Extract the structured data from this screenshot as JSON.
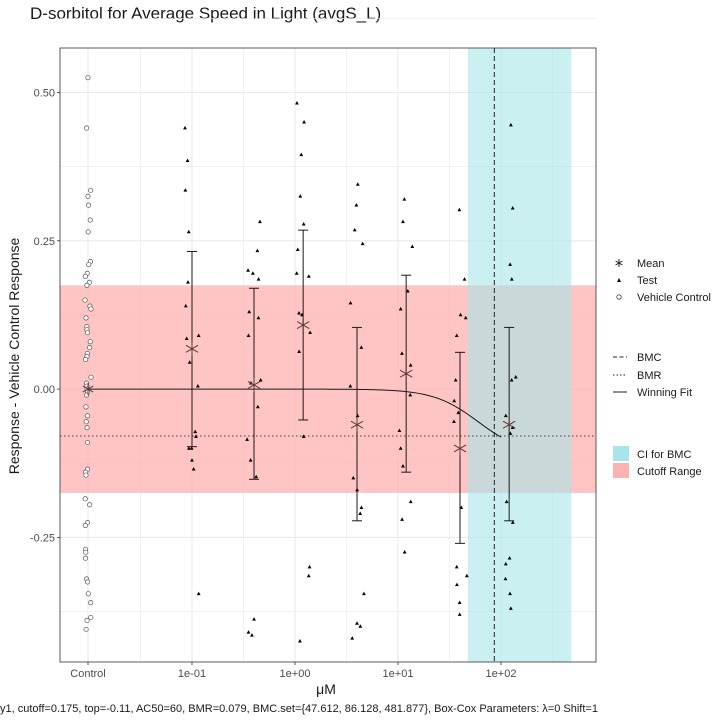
{
  "chart_data": {
    "type": "scatter",
    "title": "D-sorbitol for Average Speed in Light (avgS_L)",
    "xlabel": "μM",
    "ylabel": "Response - Vehicle Control Response",
    "x_scale": "log10",
    "x_tick_labels": [
      "Control",
      "1e-01",
      "1e+00",
      "1e+01",
      "1e+02"
    ],
    "x_tick_values": [
      null,
      0.1,
      1,
      10,
      100
    ],
    "y_ticks": [
      -0.25,
      0.0,
      0.25,
      0.5
    ],
    "y_tick_labels": [
      "-0.25",
      "0.00",
      "0.25",
      "0.50"
    ],
    "ylim": [
      -0.46,
      0.575
    ],
    "grid": true,
    "legend_position": "right",
    "cutoff_range": [
      -0.175,
      0.175
    ],
    "ci_for_bmc": [
      47.612,
      481.877
    ],
    "bmc": 86.128,
    "bmr_line": -0.079,
    "winning_fit": {
      "bottom": 0.0,
      "top": -0.11,
      "ac50": 60,
      "n": 2,
      "x_max": 100
    },
    "concentrations": [
      0.1,
      0.4,
      1.2,
      4.0,
      12,
      40,
      120
    ],
    "means": [
      0.068,
      0.007,
      0.108,
      -0.06,
      0.026,
      -0.1,
      -0.06
    ],
    "error_bars": [
      {
        "lo": -0.097,
        "hi": 0.232
      },
      {
        "lo": -0.152,
        "hi": 0.17
      },
      {
        "lo": -0.052,
        "hi": 0.268
      },
      {
        "lo": -0.222,
        "hi": 0.104
      },
      {
        "lo": -0.14,
        "hi": 0.192
      },
      {
        "lo": -0.26,
        "hi": 0.062
      },
      {
        "lo": -0.222,
        "hi": 0.104
      }
    ],
    "test_points": [
      {
        "x": 0.1,
        "y": [
          0.44,
          0.385,
          0.335,
          0.265,
          0.18,
          0.14,
          0.09,
          0.085,
          0.045,
          0.005,
          -0.072,
          -0.08,
          -0.1,
          -0.1,
          -0.12,
          -0.135,
          -0.345
        ]
      },
      {
        "x": 0.4,
        "y": [
          0.282,
          0.233,
          0.2,
          0.195,
          0.185,
          0.13,
          0.12,
          0.09,
          0.015,
          0.01,
          -0.03,
          -0.085,
          -0.12,
          -0.148,
          -0.388,
          -0.41,
          -0.415
        ]
      },
      {
        "x": 1.2,
        "y": [
          0.482,
          0.45,
          0.395,
          0.325,
          0.278,
          0.235,
          0.195,
          0.19,
          0.128,
          0.125,
          0.095,
          0.063,
          -0.08,
          -0.3,
          -0.315,
          -0.425
        ]
      },
      {
        "x": 4.0,
        "y": [
          0.345,
          0.31,
          0.268,
          0.245,
          0.145,
          0.07,
          0.005,
          -0.045,
          -0.15,
          -0.17,
          -0.2,
          -0.21,
          -0.345,
          -0.395,
          -0.4,
          -0.42
        ]
      },
      {
        "x": 12,
        "y": [
          0.32,
          0.282,
          0.24,
          0.165,
          0.135,
          0.06,
          0.04,
          -0.01,
          -0.07,
          -0.1,
          -0.13,
          -0.19,
          -0.22,
          -0.275
        ]
      },
      {
        "x": 40,
        "y": [
          0.302,
          0.185,
          0.125,
          0.12,
          0.09,
          0.015,
          -0.02,
          -0.04,
          -0.055,
          -0.2,
          -0.3,
          -0.315,
          -0.33,
          -0.36,
          -0.38
        ]
      },
      {
        "x": 120,
        "y": [
          0.445,
          0.305,
          0.21,
          0.185,
          0.02,
          0.015,
          -0.045,
          -0.065,
          -0.075,
          -0.19,
          -0.225,
          -0.285,
          -0.295,
          -0.32,
          -0.345,
          -0.37
        ]
      }
    ],
    "control_points": [
      0.525,
      0.44,
      0.335,
      0.325,
      0.31,
      0.285,
      0.265,
      0.215,
      0.21,
      0.195,
      0.19,
      0.18,
      0.175,
      0.15,
      0.14,
      0.135,
      0.12,
      0.105,
      0.1,
      0.095,
      0.08,
      0.07,
      0.06,
      0.055,
      0.05,
      0.02,
      0.01,
      0.005,
      0.0,
      -0.005,
      -0.01,
      -0.03,
      -0.045,
      -0.055,
      -0.065,
      -0.09,
      -0.135,
      -0.14,
      -0.145,
      -0.185,
      -0.195,
      -0.225,
      -0.23,
      -0.27,
      -0.275,
      -0.285,
      -0.32,
      -0.325,
      -0.345,
      -0.36,
      -0.385,
      -0.39,
      -0.405
    ],
    "legend": {
      "points": [
        "Mean",
        "Test",
        "Vehicle Control"
      ],
      "lines": [
        "BMC",
        "BMR",
        "Winning Fit"
      ],
      "fills": [
        "CI for BMC",
        "Cutoff Range"
      ]
    },
    "colors": {
      "ci_fill": "#a6e6ea",
      "cutoff_fill": "#ffb0b0",
      "panel_border": "#333333",
      "grid": "#ebebeb",
      "mean_marker": "#5a3a3a"
    },
    "footer_text": "y1, cutoff=0.175, top=-0.11, AC50=60, BMR=0.079, BMC.set={47.612, 86.128, 481.877}, Box-Cox Parameters: λ=0 Shift=1"
  }
}
